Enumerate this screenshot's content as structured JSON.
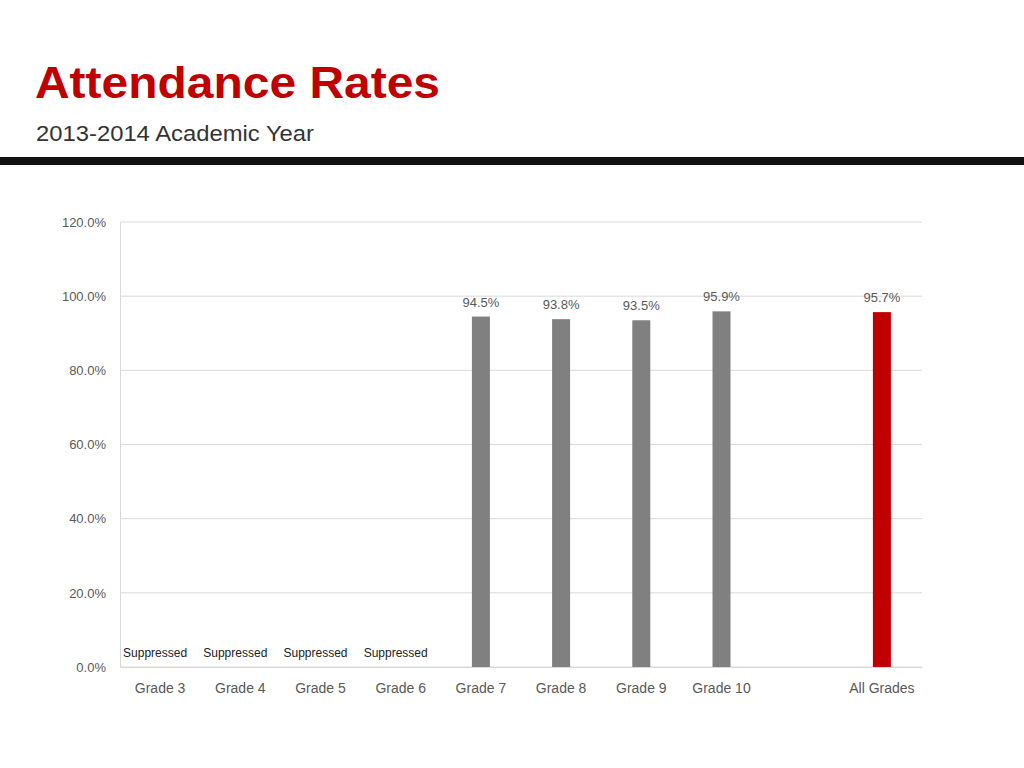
{
  "chart_data": {
    "type": "bar",
    "title": "Attendance Rates",
    "subtitle": "2013-2014 Academic Year",
    "categories": [
      "Grade 3",
      "Grade 4",
      "Grade 5",
      "Grade 6",
      "Grade 7",
      "Grade 8",
      "Grade 9",
      "Grade 10",
      null,
      "All Grades"
    ],
    "values": [
      null,
      null,
      null,
      null,
      94.5,
      93.8,
      93.5,
      95.9,
      null,
      95.7
    ],
    "value_labels": [
      "Suppressed",
      "Suppressed",
      "Suppressed",
      "Suppressed",
      "94.5%",
      "93.8%",
      "93.5%",
      "95.9%",
      null,
      "95.7%"
    ],
    "colors": [
      "#808080",
      "#808080",
      "#808080",
      "#808080",
      "#808080",
      "#808080",
      "#808080",
      "#808080",
      "#808080",
      "#c00000"
    ],
    "ylim": [
      0,
      120
    ],
    "yticks": [
      {
        "value": 0,
        "label": "0.0%"
      },
      {
        "value": 20,
        "label": "20.0%"
      },
      {
        "value": 40,
        "label": "40.0%"
      },
      {
        "value": 60,
        "label": "60.0%"
      },
      {
        "value": 80,
        "label": "80.0%"
      },
      {
        "value": 100,
        "label": "100.0%"
      },
      {
        "value": 120,
        "label": "120.0%"
      }
    ],
    "grid": true,
    "data_labels": true
  }
}
